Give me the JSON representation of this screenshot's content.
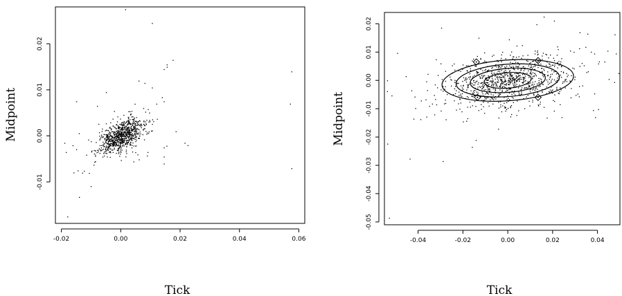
{
  "chart_data": [
    {
      "type": "scatter",
      "xlabel": "Tick",
      "ylabel": "Midpoint",
      "xlim": [
        -0.022,
        0.062
      ],
      "ylim": [
        -0.019,
        0.028
      ],
      "x_ticks": [
        -0.02,
        0.0,
        0.02,
        0.04,
        0.06
      ],
      "x_tick_labels": [
        "-0.02",
        "0.00",
        "0.02",
        "0.04",
        "0.06"
      ],
      "y_ticks": [
        -0.01,
        0.0,
        0.01,
        0.02
      ],
      "y_tick_labels": [
        "-0.01",
        "0.00",
        "0.01",
        "0.02"
      ],
      "grid": false,
      "core": {
        "cx": 0.0,
        "cy": 0.0,
        "sx": 0.0035,
        "sy": 0.0018,
        "rho": 0.55,
        "n": 900
      },
      "outliers": [
        [
          0.0015,
          0.0275
        ],
        [
          0.0105,
          0.0245
        ],
        [
          0.0575,
          0.014
        ],
        [
          0.057,
          0.007
        ],
        [
          0.0575,
          -0.007
        ],
        [
          0.0175,
          0.0165
        ],
        [
          0.0155,
          0.0155
        ],
        [
          0.0145,
          0.0145
        ],
        [
          0.0155,
          0.015
        ],
        [
          -0.018,
          -0.0175
        ],
        [
          -0.015,
          0.0075
        ],
        [
          -0.0145,
          -0.0075
        ],
        [
          -0.013,
          -0.008
        ],
        [
          0.0225,
          -0.002
        ],
        [
          0.0145,
          0.0075
        ],
        [
          0.008,
          0.0115
        ],
        [
          0.0105,
          0.0105
        ],
        [
          -0.019,
          -0.0015
        ],
        [
          0.0185,
          0.001
        ],
        [
          -0.008,
          0.0065
        ],
        [
          0.0145,
          -0.006
        ],
        [
          0.0145,
          -0.0045
        ],
        [
          0.0145,
          -0.0025
        ],
        [
          0.012,
          0.007
        ],
        [
          -0.005,
          0.0095
        ],
        [
          0.006,
          0.012
        ],
        [
          -0.0185,
          -0.0035
        ],
        [
          0.0215,
          -0.0015
        ]
      ]
    },
    {
      "type": "scatter",
      "xlabel": "Tick",
      "ylabel": "Midpoint",
      "xlim": [
        -0.055,
        0.05
      ],
      "ylim": [
        -0.051,
        0.024
      ],
      "x_ticks": [
        -0.04,
        -0.02,
        0.0,
        0.02,
        0.04
      ],
      "x_tick_labels": [
        "-0.04",
        "-0.02",
        "0.00",
        "0.02",
        "0.04"
      ],
      "y_ticks": [
        -0.05,
        -0.04,
        -0.03,
        -0.02,
        -0.01,
        0.0,
        0.01,
        0.02
      ],
      "y_tick_labels": [
        "-0.05",
        "-0.04",
        "-0.03",
        "-0.02",
        "-0.01",
        "0.00",
        "0.01",
        "0.02"
      ],
      "grid": false,
      "core": {
        "cx": 0.0,
        "cy": 0.0,
        "sx": 0.014,
        "sy": 0.0045,
        "rho": 0.3,
        "n": 1000
      },
      "outliers": [
        [
          -0.053,
          -0.0485
        ],
        [
          -0.029,
          -0.0285
        ],
        [
          -0.016,
          -0.0235
        ],
        [
          0.016,
          0.0225
        ],
        [
          0.032,
          0.017
        ],
        [
          0.0355,
          0.0165
        ],
        [
          0.0385,
          0.0095
        ],
        [
          0.038,
          -0.0105
        ],
        [
          -0.043,
          -0.0035
        ],
        [
          0.045,
          0.0005
        ],
        [
          -0.0455,
          0.0015
        ],
        [
          0.0005,
          0.0145
        ],
        [
          -0.02,
          -0.0145
        ],
        [
          0.022,
          0.012
        ],
        [
          -0.03,
          0.006
        ],
        [
          0.028,
          -0.006
        ]
      ],
      "contour_levels": [
        1,
        2,
        3,
        4
      ],
      "diamond_markers": [
        [
          -0.014,
          0.0065
        ],
        [
          -0.0135,
          -0.006
        ],
        [
          0.0135,
          0.007
        ],
        [
          0.0135,
          -0.006
        ]
      ]
    }
  ]
}
